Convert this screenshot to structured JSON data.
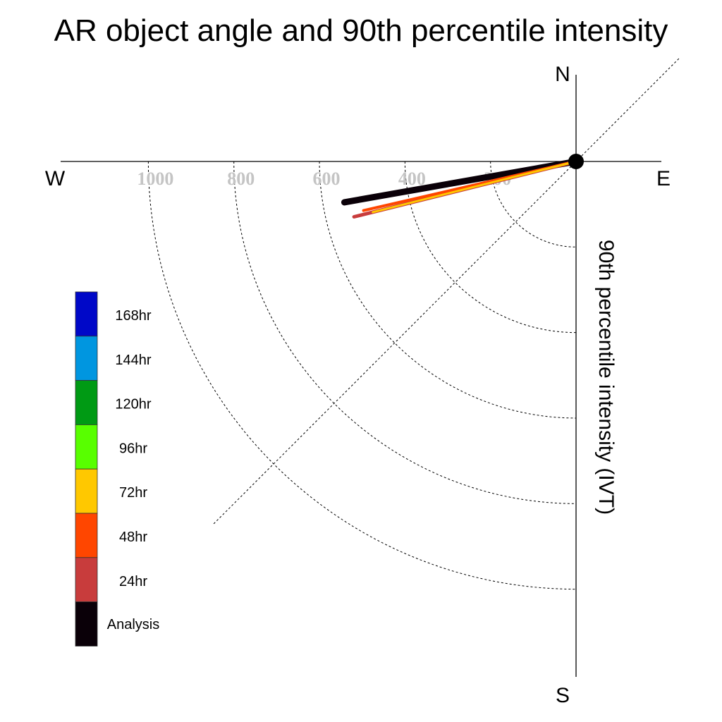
{
  "chart_data": {
    "type": "polar",
    "title": "AR object angle and 90th percentile intensity",
    "radial_label": "90th percentile intensity (IVT)",
    "directions": {
      "north": "N",
      "south": "S",
      "east": "E",
      "west": "W"
    },
    "radial_ticks": [
      200,
      400,
      600,
      800,
      1000
    ],
    "radial_tick_labels": [
      "200",
      "400",
      "600",
      "800",
      "1000"
    ],
    "radial_max": 1200,
    "grid": true,
    "legend_position": "left",
    "legend": [
      {
        "label": "168hr",
        "color": "#0008c8"
      },
      {
        "label": "144hr",
        "color": "#0096e0"
      },
      {
        "label": "120hr",
        "color": "#009a14"
      },
      {
        "label": "96hr",
        "color": "#58ff00"
      },
      {
        "label": "72hr",
        "color": "#ffc800"
      },
      {
        "label": "48hr",
        "color": "#ff4600"
      },
      {
        "label": "24hr",
        "color": "#c83c3c"
      },
      {
        "label": "Analysis",
        "color": "#0a0008"
      }
    ],
    "series": [
      {
        "name": "Analysis",
        "color": "#0a0008",
        "angle_deg": 260,
        "intensity": 550
      },
      {
        "name": "24hr",
        "color": "#c83c3c",
        "angle_deg": 256,
        "intensity": 535
      },
      {
        "name": "48hr",
        "color": "#ff4600",
        "angle_deg": 257,
        "intensity": 510
      },
      {
        "name": "72hr",
        "color": "#ffc800",
        "angle_deg": 256,
        "intensity": 490
      }
    ]
  }
}
